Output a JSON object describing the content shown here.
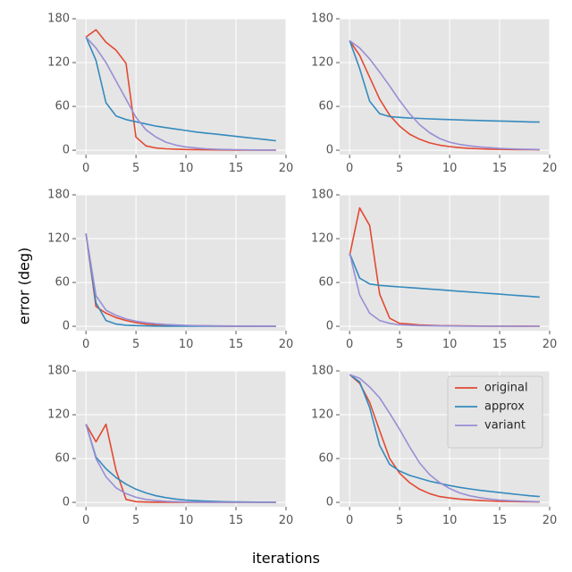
{
  "figure": {
    "xlabel": "iterations",
    "ylabel": "error (deg)"
  },
  "colors": {
    "panel_background": "#E5E5E5",
    "grid": "#FFFFFF",
    "tick_text": "#555555",
    "original": "#E24A33",
    "approx": "#348ABD",
    "variant": "#988ED5"
  },
  "legend": {
    "panel_index": 5,
    "placement": "top-right",
    "entries": [
      {
        "name": "original",
        "color": "#E24A33"
      },
      {
        "name": "approx",
        "color": "#348ABD"
      },
      {
        "name": "variant",
        "color": "#988ED5"
      }
    ]
  },
  "chart_data": [
    {
      "type": "line",
      "xlabel": "iterations",
      "ylabel": "error (deg)",
      "xlim": [
        -1,
        20
      ],
      "ylim": [
        -6,
        180
      ],
      "xticks": [
        0,
        5,
        10,
        15,
        20
      ],
      "yticks": [
        0,
        60,
        120,
        180
      ],
      "grid": true,
      "x": [
        0,
        1,
        2,
        3,
        4,
        5,
        6,
        7,
        8,
        9,
        10,
        11,
        12,
        13,
        14,
        15,
        16,
        17,
        18,
        19
      ],
      "series": [
        {
          "name": "original",
          "values": [
            155,
            165,
            148,
            137,
            119,
            18,
            6,
            3,
            2,
            1.5,
            1,
            0.8,
            0.6,
            0.5,
            0.4,
            0.3,
            0.3,
            0.2,
            0.2,
            0.2
          ]
        },
        {
          "name": "approx",
          "values": [
            155,
            123,
            65,
            47,
            42,
            39,
            36,
            33,
            31,
            29,
            27,
            25,
            23.5,
            22,
            20.5,
            19,
            17.5,
            16,
            14.5,
            13
          ]
        },
        {
          "name": "variant",
          "values": [
            155,
            140,
            120,
            95,
            70,
            45,
            28,
            18,
            11,
            7,
            4.5,
            3,
            2,
            1.3,
            1,
            0.7,
            0.5,
            0.4,
            0.3,
            0.2
          ]
        }
      ]
    },
    {
      "type": "line",
      "xlabel": "iterations",
      "ylabel": "error (deg)",
      "xlim": [
        -1,
        20
      ],
      "ylim": [
        -6,
        180
      ],
      "xticks": [
        0,
        5,
        10,
        15,
        20
      ],
      "yticks": [
        0,
        60,
        120,
        180
      ],
      "grid": true,
      "x": [
        0,
        1,
        2,
        3,
        4,
        5,
        6,
        7,
        8,
        9,
        10,
        11,
        12,
        13,
        14,
        15,
        16,
        17,
        18,
        19
      ],
      "series": [
        {
          "name": "original",
          "values": [
            150,
            130,
            100,
            70,
            48,
            33,
            22,
            15,
            10,
            7,
            5,
            3.5,
            2.5,
            2,
            1.5,
            1.2,
            1,
            0.8,
            0.7,
            0.6
          ]
        },
        {
          "name": "approx",
          "values": [
            150,
            112,
            67,
            50,
            46,
            45,
            44,
            43.5,
            43,
            42.5,
            42,
            41.5,
            41,
            40.7,
            40.3,
            40,
            39.6,
            39.2,
            38.8,
            38.5
          ]
        },
        {
          "name": "variant",
          "values": [
            150,
            140,
            125,
            107,
            88,
            68,
            50,
            35,
            24,
            16,
            11,
            8,
            6,
            4.5,
            3.5,
            2.5,
            2,
            1.5,
            1.2,
            1
          ]
        }
      ]
    },
    {
      "type": "line",
      "xlabel": "iterations",
      "ylabel": "error (deg)",
      "xlim": [
        -1,
        20
      ],
      "ylim": [
        -6,
        180
      ],
      "xticks": [
        0,
        5,
        10,
        15,
        20
      ],
      "yticks": [
        0,
        60,
        120,
        180
      ],
      "grid": true,
      "x": [
        0,
        1,
        2,
        3,
        4,
        5,
        6,
        7,
        8,
        9,
        10,
        11,
        12,
        13,
        14,
        15,
        16,
        17,
        18,
        19
      ],
      "series": [
        {
          "name": "original",
          "values": [
            127,
            27,
            18,
            12,
            8,
            5,
            3,
            2,
            1.5,
            1,
            0.8,
            0.6,
            0.5,
            0.4,
            0.3,
            0.2,
            0.2,
            0.1,
            0.1,
            0.1
          ]
        },
        {
          "name": "approx",
          "values": [
            127,
            32,
            8,
            3,
            1.5,
            1,
            0.6,
            0.4,
            0.3,
            0.2,
            0.2,
            0.1,
            0.1,
            0.1,
            0.1,
            0.1,
            0.1,
            0.1,
            0.1,
            0.1
          ]
        },
        {
          "name": "variant",
          "values": [
            127,
            42,
            22,
            15,
            10,
            7,
            5,
            3.5,
            2.5,
            1.8,
            1.3,
            1,
            0.8,
            0.6,
            0.5,
            0.4,
            0.3,
            0.3,
            0.2,
            0.2
          ]
        }
      ]
    },
    {
      "type": "line",
      "xlabel": "iterations",
      "ylabel": "error (deg)",
      "xlim": [
        -1,
        20
      ],
      "ylim": [
        -6,
        180
      ],
      "xticks": [
        0,
        5,
        10,
        15,
        20
      ],
      "yticks": [
        0,
        60,
        120,
        180
      ],
      "grid": true,
      "x": [
        0,
        1,
        2,
        3,
        4,
        5,
        6,
        7,
        8,
        9,
        10,
        11,
        12,
        13,
        14,
        15,
        16,
        17,
        18,
        19
      ],
      "series": [
        {
          "name": "original",
          "values": [
            97,
            162,
            138,
            44,
            11,
            4,
            3,
            2,
            1.5,
            1,
            0.8,
            0.6,
            0.5,
            0.4,
            0.3,
            0.3,
            0.2,
            0.2,
            0.2,
            0.1
          ]
        },
        {
          "name": "approx",
          "values": [
            100,
            66,
            58,
            56,
            55,
            54,
            53,
            52,
            51,
            50,
            49,
            48,
            47,
            46,
            45,
            44,
            43,
            42,
            41,
            40
          ]
        },
        {
          "name": "variant",
          "values": [
            100,
            43,
            18,
            8,
            4,
            2,
            1.5,
            1,
            0.8,
            0.6,
            0.5,
            0.4,
            0.3,
            0.3,
            0.2,
            0.2,
            0.2,
            0.1,
            0.1,
            0.1
          ]
        }
      ]
    },
    {
      "type": "line",
      "xlabel": "iterations",
      "ylabel": "error (deg)",
      "xlim": [
        -1,
        20
      ],
      "ylim": [
        -6,
        180
      ],
      "xticks": [
        0,
        5,
        10,
        15,
        20
      ],
      "yticks": [
        0,
        60,
        120,
        180
      ],
      "grid": true,
      "x": [
        0,
        1,
        2,
        3,
        4,
        5,
        6,
        7,
        8,
        9,
        10,
        11,
        12,
        13,
        14,
        15,
        16,
        17,
        18,
        19
      ],
      "series": [
        {
          "name": "original",
          "values": [
            107,
            83,
            107,
            44,
            4,
            1,
            0.5,
            0.3,
            0.2,
            0.1,
            0.1,
            0.1,
            0.1,
            0.1,
            0.1,
            0.1,
            0.1,
            0.1,
            0.1,
            0.1
          ]
        },
        {
          "name": "approx",
          "values": [
            107,
            62,
            46,
            34,
            25,
            18,
            13,
            9,
            6.5,
            4.5,
            3.2,
            2.3,
            1.7,
            1.2,
            0.9,
            0.7,
            0.5,
            0.4,
            0.3,
            0.2
          ]
        },
        {
          "name": "variant",
          "values": [
            107,
            60,
            35,
            20,
            12,
            7,
            4,
            2.5,
            1.5,
            1,
            0.6,
            0.4,
            0.3,
            0.2,
            0.1,
            0.1,
            0.1,
            0.1,
            0.1,
            0.1
          ]
        }
      ]
    },
    {
      "type": "line",
      "xlabel": "iterations",
      "ylabel": "error (deg)",
      "xlim": [
        -1,
        20
      ],
      "ylim": [
        -6,
        180
      ],
      "xticks": [
        0,
        5,
        10,
        15,
        20
      ],
      "yticks": [
        0,
        60,
        120,
        180
      ],
      "grid": true,
      "x": [
        0,
        1,
        2,
        3,
        4,
        5,
        6,
        7,
        8,
        9,
        10,
        11,
        12,
        13,
        14,
        15,
        16,
        17,
        18,
        19
      ],
      "series": [
        {
          "name": "original",
          "values": [
            175,
            163,
            137,
            98,
            60,
            40,
            27,
            18,
            12,
            8,
            6,
            4.5,
            3.5,
            2.7,
            2,
            1.5,
            1.2,
            1,
            0.8,
            0.6
          ]
        },
        {
          "name": "approx",
          "values": [
            175,
            165,
            130,
            78,
            52,
            43,
            37,
            33,
            29,
            26,
            23,
            20.5,
            18.5,
            16.5,
            15,
            13.5,
            12,
            10.5,
            9,
            8
          ]
        },
        {
          "name": "variant",
          "values": [
            175,
            170,
            158,
            143,
            122,
            100,
            76,
            54,
            38,
            27,
            19,
            13,
            9,
            6.5,
            4.5,
            3.2,
            2.3,
            1.7,
            1.2,
            0.9
          ]
        }
      ]
    }
  ]
}
